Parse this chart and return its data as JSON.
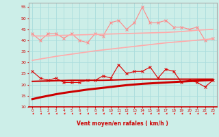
{
  "xlabel": "Vent moyen/en rafales ( km/h )",
  "x": [
    0,
    1,
    2,
    3,
    4,
    5,
    6,
    7,
    8,
    9,
    10,
    11,
    12,
    13,
    14,
    15,
    16,
    17,
    18,
    19,
    20,
    21,
    22,
    23
  ],
  "background_color": "#cceee8",
  "grid_color": "#aadddd",
  "series": [
    {
      "name": "rafales_data",
      "color": "#ff8888",
      "lw": 0.8,
      "marker": "x",
      "markersize": 2.5,
      "values": [
        43,
        40,
        43,
        43,
        41,
        43,
        40,
        39,
        43,
        42,
        48,
        49,
        45,
        48,
        55,
        48,
        48,
        49,
        46,
        46,
        45,
        46,
        40,
        41
      ]
    },
    {
      "name": "moyen_data",
      "color": "#dd0000",
      "lw": 0.8,
      "marker": "x",
      "markersize": 2.5,
      "values": [
        26,
        23,
        22,
        23,
        21,
        21,
        21,
        22,
        22,
        24,
        23,
        29,
        25,
        26,
        26,
        28,
        23,
        27,
        26,
        21,
        22,
        21,
        19,
        22
      ]
    },
    {
      "name": "trend_rafales_upper",
      "color": "#ffaaaa",
      "lw": 1.2,
      "marker": null,
      "markersize": 0,
      "values": [
        42.0,
        42.0,
        42.0,
        42.2,
        42.3,
        42.4,
        42.5,
        42.6,
        42.7,
        42.8,
        42.9,
        43.0,
        43.1,
        43.2,
        43.3,
        43.4,
        43.5,
        43.6,
        43.8,
        44.0,
        44.3,
        44.6,
        44.8,
        45.0
      ]
    },
    {
      "name": "trend_rafales_lower",
      "color": "#ffaaaa",
      "lw": 1.2,
      "marker": null,
      "markersize": 0,
      "values": [
        31.0,
        31.6,
        32.2,
        32.8,
        33.3,
        33.8,
        34.3,
        34.8,
        35.3,
        35.7,
        36.1,
        36.5,
        36.9,
        37.3,
        37.7,
        38.1,
        38.5,
        38.9,
        39.2,
        39.5,
        39.8,
        40.1,
        40.4,
        40.7
      ]
    },
    {
      "name": "trend_moyen_upper",
      "color": "#cc0000",
      "lw": 1.5,
      "marker": null,
      "markersize": 0,
      "values": [
        21.5,
        21.6,
        21.7,
        21.8,
        21.9,
        22.0,
        22.0,
        22.0,
        22.0,
        22.0,
        22.1,
        22.2,
        22.3,
        22.4,
        22.5,
        22.5,
        22.5,
        22.5,
        22.5,
        22.5,
        22.5,
        22.5,
        22.5,
        22.5
      ]
    },
    {
      "name": "trend_moyen_lower",
      "color": "#cc0000",
      "lw": 2.2,
      "marker": null,
      "markersize": 0,
      "values": [
        13.5,
        14.3,
        15.0,
        15.7,
        16.3,
        16.8,
        17.3,
        17.8,
        18.2,
        18.6,
        19.0,
        19.4,
        19.8,
        20.1,
        20.4,
        20.6,
        20.8,
        21.0,
        21.2,
        21.4,
        21.6,
        21.8,
        22.0,
        22.1
      ]
    }
  ],
  "arrow_color": "#ee2222",
  "ylim": [
    10,
    57
  ],
  "yticks": [
    10,
    15,
    20,
    25,
    30,
    35,
    40,
    45,
    50,
    55
  ],
  "xticks": [
    0,
    1,
    2,
    3,
    4,
    5,
    6,
    7,
    8,
    9,
    10,
    11,
    12,
    13,
    14,
    15,
    16,
    17,
    18,
    19,
    20,
    21,
    22,
    23
  ]
}
